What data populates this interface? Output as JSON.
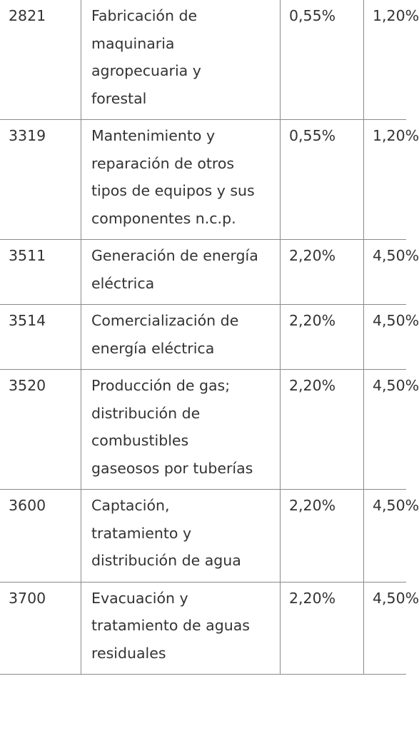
{
  "rows": [
    {
      "code": "2821",
      "description_lines": [
        "Fabricación de",
        "maquinaria",
        "agropecuaria y",
        "forestal"
      ],
      "rate_1": "0,55%",
      "rate_2": "1,20%"
    },
    {
      "code": "3319",
      "description_lines": [
        "Mantenimiento y",
        "reparación de otros",
        "tipos de equipos y sus",
        "componentes n.c.p."
      ],
      "rate_1": "0,55%",
      "rate_2": "1,20%"
    },
    {
      "code": "3511",
      "description_lines": [
        "Generación de energía",
        "eléctrica"
      ],
      "rate_1": "2,20%",
      "rate_2": "4,50%"
    },
    {
      "code": "3514",
      "description_lines": [
        "Comercialización de",
        "energía eléctrica"
      ],
      "rate_1": "2,20%",
      "rate_2": "4,50%"
    },
    {
      "code": "3520",
      "description_lines": [
        "Producción de gas;",
        "distribución de",
        "combustibles",
        "gaseosos por tuberías"
      ],
      "rate_1": "2,20%",
      "rate_2": "4,50%"
    },
    {
      "code": "3600",
      "description_lines": [
        "Captación,",
        "tratamiento y",
        "distribución de agua"
      ],
      "rate_1": "2,20%",
      "rate_2": "4,50%"
    },
    {
      "code": "3700",
      "description_lines": [
        "Evacuación y",
        "tratamiento de aguas",
        "residuales"
      ],
      "rate_1": "2,20%",
      "rate_2": "4,50%"
    }
  ]
}
